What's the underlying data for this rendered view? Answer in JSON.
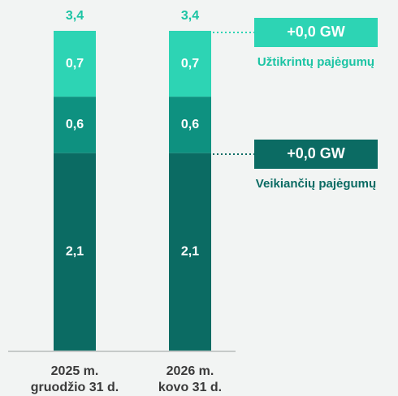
{
  "chart_data": {
    "type": "stacked_bar",
    "categories": [
      [
        "2025 m.",
        "gruodžio 31 d."
      ],
      [
        "2026 m.",
        "kovo 31 d."
      ]
    ],
    "series": [
      {
        "color": "#0b6b63",
        "values": [
          2.1,
          2.1
        ],
        "value_labels": [
          "2,1",
          "2,1"
        ]
      },
      {
        "color": "#0e9180",
        "values": [
          0.6,
          0.6
        ],
        "value_labels": [
          "0,6",
          "0,6"
        ]
      },
      {
        "color": "#2dd4b4",
        "values": [
          0.7,
          0.7
        ],
        "value_labels": [
          "0,7",
          "0,7"
        ]
      }
    ],
    "totals": [
      3.4,
      3.4
    ],
    "total_labels": [
      "3,4",
      "3,4"
    ],
    "total_color": "#1cc4a4",
    "ylim": [
      0,
      3.4
    ],
    "annotations": [
      {
        "text": "+0,0 GW",
        "label": "Užtikrintų pajėgumų",
        "color": "#2dd4b4",
        "label_color": "#1cc4a4"
      },
      {
        "text": "+0,0 GW",
        "label": "Veikiančių pajėgumų",
        "color": "#0b6b63",
        "label_color": "#0b6b63"
      }
    ]
  }
}
